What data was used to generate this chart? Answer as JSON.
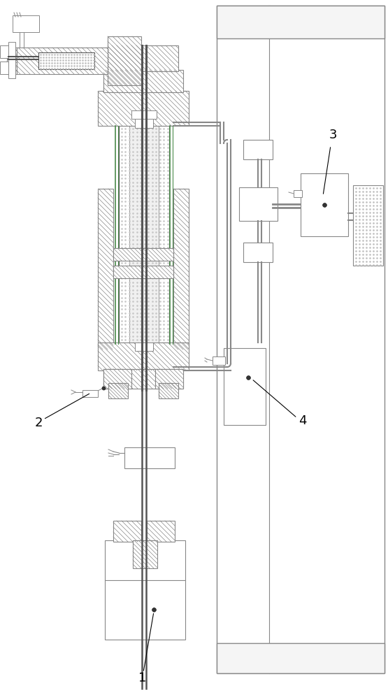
{
  "bg_color": "#ffffff",
  "lc": "#888888",
  "dlc": "#555555",
  "blc": "#333333",
  "green": "#4a8a4a",
  "light_green": "#7ab87a"
}
